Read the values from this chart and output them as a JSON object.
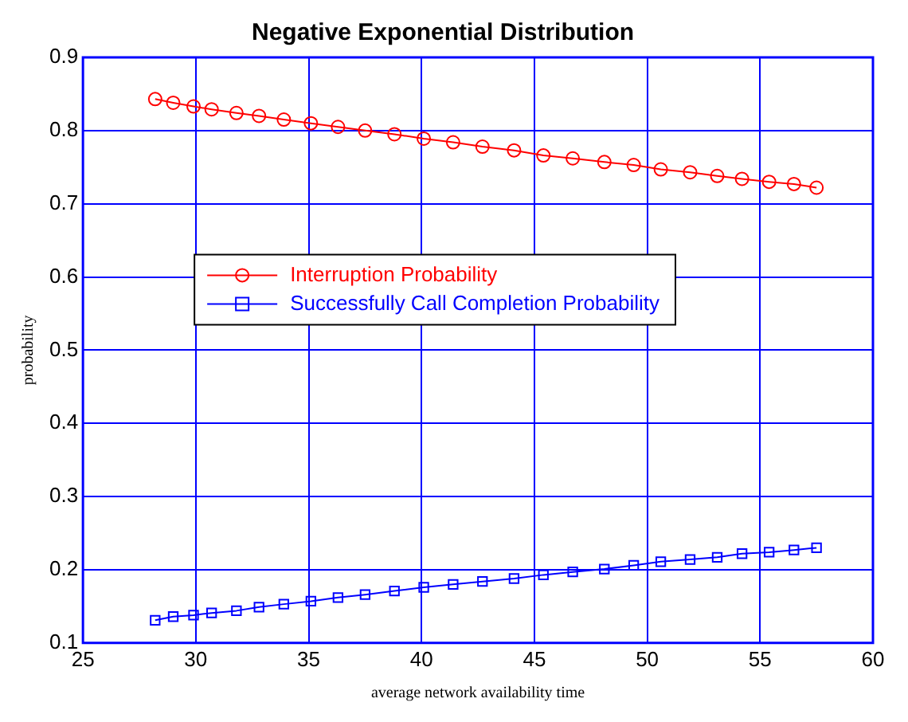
{
  "chart_data": {
    "type": "line",
    "title": "Negative Exponential Distribution",
    "xlabel": "average network availability time",
    "ylabel": "probability",
    "x": [
      28.2,
      29.0,
      29.9,
      30.7,
      31.8,
      32.8,
      33.9,
      35.1,
      36.3,
      37.5,
      38.8,
      40.1,
      41.4,
      42.7,
      44.1,
      45.4,
      46.7,
      48.1,
      49.4,
      50.6,
      51.9,
      53.1,
      54.2,
      55.4,
      56.5,
      57.5
    ],
    "series": [
      {
        "name": "Interruption Probability",
        "color": "#ff0000",
        "marker": "circle",
        "values": [
          0.843,
          0.838,
          0.833,
          0.829,
          0.824,
          0.82,
          0.815,
          0.81,
          0.805,
          0.8,
          0.795,
          0.789,
          0.784,
          0.778,
          0.773,
          0.766,
          0.762,
          0.757,
          0.753,
          0.747,
          0.743,
          0.738,
          0.734,
          0.73,
          0.727,
          0.722
        ]
      },
      {
        "name": "Successfully Call Completion Probability",
        "color": "#0000ff",
        "marker": "square",
        "values": [
          0.131,
          0.136,
          0.138,
          0.141,
          0.144,
          0.149,
          0.153,
          0.157,
          0.162,
          0.166,
          0.171,
          0.176,
          0.18,
          0.184,
          0.188,
          0.193,
          0.197,
          0.201,
          0.206,
          0.211,
          0.214,
          0.217,
          0.222,
          0.224,
          0.227,
          0.23
        ]
      }
    ],
    "xlim": [
      25,
      60
    ],
    "xticks": [
      25,
      30,
      35,
      40,
      45,
      50,
      55,
      60
    ],
    "ylim": [
      0.1,
      0.9
    ],
    "yticks": [
      0.1,
      0.2,
      0.3,
      0.4,
      0.5,
      0.6,
      0.7,
      0.8,
      0.9
    ],
    "grid": true,
    "legend": "left",
    "line_style": "solid"
  }
}
